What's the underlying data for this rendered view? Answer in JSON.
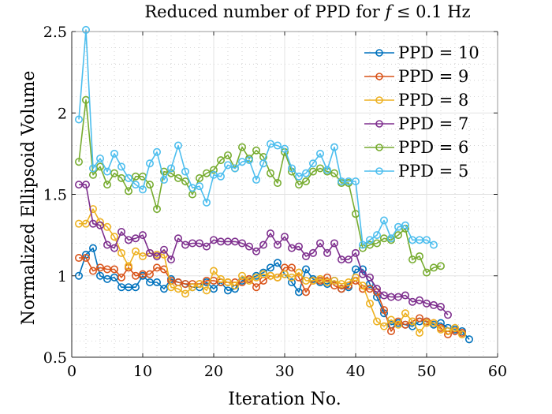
{
  "chart_data": {
    "type": "line",
    "title": "Reduced number of PPD for f ≤ 0.1 Hz",
    "title_parts": {
      "before": "Reduced number of PPD for ",
      "var": "f",
      "after": " ≤ 0.1 Hz"
    },
    "xlabel": "Iteration No.",
    "ylabel": "Normalized Ellipsoid Volume",
    "xlim": [
      0,
      60
    ],
    "ylim": [
      0.5,
      2.5
    ],
    "xticks": [
      0,
      10,
      20,
      30,
      40,
      50,
      60
    ],
    "xtick_labels": [
      "0",
      "10",
      "20",
      "30",
      "40",
      "50",
      "60"
    ],
    "yticks": [
      0.5,
      1,
      1.5,
      2,
      2.5
    ],
    "ytick_labels": [
      "0.5",
      "1",
      "1.5",
      "2",
      "2.5"
    ],
    "grid": true,
    "minor_grid": true,
    "legend_position": "top-right",
    "marker": "circle",
    "series": [
      {
        "name": "PPD = 10",
        "color": "#0072BD",
        "x": [
          1,
          2,
          3,
          4,
          5,
          6,
          7,
          8,
          9,
          10,
          11,
          12,
          13,
          14,
          15,
          16,
          17,
          18,
          19,
          20,
          21,
          22,
          23,
          24,
          25,
          26,
          27,
          28,
          29,
          30,
          31,
          32,
          33,
          34,
          35,
          36,
          37,
          38,
          39,
          40,
          41,
          42,
          43,
          44,
          45,
          46,
          47,
          48,
          49,
          50,
          51,
          52,
          53,
          54,
          55,
          56
        ],
        "values": [
          1.0,
          1.13,
          1.17,
          1.0,
          0.98,
          0.99,
          0.93,
          0.93,
          0.93,
          1.0,
          0.96,
          0.96,
          0.92,
          0.98,
          0.96,
          0.95,
          0.93,
          0.93,
          0.96,
          0.92,
          0.96,
          0.91,
          0.92,
          0.97,
          0.98,
          1.0,
          1.02,
          1.05,
          1.08,
          1.01,
          0.96,
          0.9,
          1.04,
          0.98,
          0.96,
          0.95,
          0.97,
          0.92,
          0.93,
          1.04,
          1.04,
          0.95,
          0.87,
          0.77,
          0.7,
          0.71,
          0.7,
          0.69,
          0.72,
          0.72,
          0.7,
          0.71,
          0.68,
          0.67,
          0.66,
          0.61
        ]
      },
      {
        "name": "PPD = 9",
        "color": "#D95319",
        "x": [
          1,
          2,
          3,
          4,
          5,
          6,
          7,
          8,
          9,
          10,
          11,
          12,
          13,
          14,
          15,
          16,
          17,
          18,
          19,
          20,
          21,
          22,
          23,
          24,
          25,
          26,
          27,
          28,
          29,
          30,
          31,
          32,
          33,
          34,
          35,
          36,
          37,
          38,
          39,
          40,
          41,
          42,
          43,
          44,
          45,
          46,
          47,
          48,
          49,
          50,
          51,
          52,
          53,
          54,
          55
        ],
        "values": [
          1.11,
          1.11,
          1.03,
          1.05,
          1.04,
          1.04,
          0.99,
          1.05,
          1.0,
          1.01,
          1.01,
          1.05,
          1.04,
          0.97,
          0.96,
          0.95,
          0.95,
          0.95,
          0.97,
          0.97,
          0.96,
          0.96,
          0.96,
          0.96,
          0.98,
          0.93,
          0.97,
          1.0,
          0.99,
          1.05,
          1.05,
          0.99,
          0.9,
          0.97,
          0.97,
          0.99,
          0.94,
          0.92,
          0.94,
          0.97,
          0.92,
          0.92,
          0.9,
          0.79,
          0.66,
          0.72,
          0.7,
          0.72,
          0.74,
          0.72,
          0.71,
          0.68,
          0.64,
          0.66,
          0.65
        ]
      },
      {
        "name": "PPD = 8",
        "color": "#EDB120",
        "x": [
          1,
          2,
          3,
          4,
          5,
          6,
          7,
          8,
          9,
          10,
          11,
          12,
          13,
          14,
          15,
          16,
          17,
          18,
          19,
          20,
          21,
          22,
          23,
          24,
          25,
          26,
          27,
          28,
          29,
          30,
          31,
          32,
          33,
          34,
          35,
          36,
          37,
          38,
          39,
          40,
          41,
          42,
          43,
          44,
          45,
          46,
          47,
          48,
          49,
          50,
          51,
          52,
          53,
          54,
          55
        ],
        "values": [
          1.32,
          1.32,
          1.41,
          1.33,
          1.3,
          1.24,
          1.14,
          1.06,
          1.15,
          1.12,
          1.14,
          1.13,
          1.13,
          0.93,
          0.92,
          0.89,
          0.93,
          0.95,
          0.91,
          1.03,
          0.98,
          0.96,
          0.94,
          1.0,
          0.97,
          0.99,
          1.01,
          1.0,
          0.99,
          1.01,
          0.99,
          1.02,
          0.97,
          0.97,
          0.98,
          0.96,
          0.97,
          0.95,
          0.96,
          0.99,
          0.94,
          0.83,
          0.72,
          0.69,
          0.73,
          0.7,
          0.77,
          0.72,
          0.65,
          0.71,
          0.71,
          0.67,
          0.66,
          0.68,
          0.64
        ]
      },
      {
        "name": "PPD = 7",
        "color": "#7E2F8E",
        "x": [
          1,
          2,
          3,
          4,
          5,
          6,
          7,
          8,
          9,
          10,
          11,
          12,
          13,
          14,
          15,
          16,
          17,
          18,
          19,
          20,
          21,
          22,
          23,
          24,
          25,
          26,
          27,
          28,
          29,
          30,
          31,
          32,
          33,
          34,
          35,
          36,
          37,
          38,
          39,
          40,
          41,
          42,
          43,
          44,
          45,
          46,
          47,
          48,
          49,
          50,
          51,
          52,
          53
        ],
        "values": [
          1.56,
          1.56,
          1.32,
          1.31,
          1.19,
          1.17,
          1.27,
          1.22,
          1.23,
          1.25,
          1.14,
          1.12,
          1.16,
          1.1,
          1.23,
          1.19,
          1.2,
          1.2,
          1.18,
          1.22,
          1.21,
          1.21,
          1.21,
          1.2,
          1.18,
          1.15,
          1.19,
          1.26,
          1.19,
          1.24,
          1.17,
          1.18,
          1.12,
          1.14,
          1.2,
          1.14,
          1.2,
          1.1,
          1.1,
          1.14,
          1.01,
          0.99,
          0.92,
          0.88,
          0.87,
          0.87,
          0.88,
          0.84,
          0.85,
          0.83,
          0.82,
          0.81,
          0.76
        ]
      },
      {
        "name": "PPD = 6",
        "color": "#77AC30",
        "x": [
          1,
          2,
          3,
          4,
          5,
          6,
          7,
          8,
          9,
          10,
          11,
          12,
          13,
          14,
          15,
          16,
          17,
          18,
          19,
          20,
          21,
          22,
          23,
          24,
          25,
          26,
          27,
          28,
          29,
          30,
          31,
          32,
          33,
          34,
          35,
          36,
          37,
          38,
          39,
          40,
          41,
          42,
          43,
          44,
          45,
          46,
          47,
          48,
          49,
          50,
          51,
          52
        ],
        "values": [
          1.7,
          2.08,
          1.62,
          1.67,
          1.56,
          1.63,
          1.6,
          1.52,
          1.61,
          1.61,
          1.56,
          1.41,
          1.64,
          1.63,
          1.6,
          1.58,
          1.5,
          1.6,
          1.63,
          1.65,
          1.71,
          1.74,
          1.66,
          1.79,
          1.72,
          1.77,
          1.73,
          1.63,
          1.57,
          1.76,
          1.64,
          1.56,
          1.58,
          1.64,
          1.66,
          1.64,
          1.63,
          1.57,
          1.57,
          1.38,
          1.17,
          1.19,
          1.2,
          1.23,
          1.22,
          1.25,
          1.29,
          1.1,
          1.12,
          1.02,
          1.05,
          1.06
        ]
      },
      {
        "name": "PPD = 5",
        "color": "#4DBEEE",
        "x": [
          1,
          2,
          3,
          4,
          5,
          6,
          7,
          8,
          9,
          10,
          11,
          12,
          13,
          14,
          15,
          16,
          17,
          18,
          19,
          20,
          21,
          22,
          23,
          24,
          25,
          26,
          27,
          28,
          29,
          30,
          31,
          32,
          33,
          34,
          35,
          36,
          37,
          38,
          39,
          40,
          41,
          42,
          43,
          44,
          45,
          46,
          47,
          48,
          49,
          50,
          51
        ],
        "values": [
          1.96,
          2.51,
          1.66,
          1.72,
          1.64,
          1.75,
          1.67,
          1.6,
          1.56,
          1.53,
          1.69,
          1.76,
          1.59,
          1.66,
          1.8,
          1.64,
          1.54,
          1.55,
          1.45,
          1.62,
          1.61,
          1.68,
          1.66,
          1.7,
          1.71,
          1.59,
          1.69,
          1.81,
          1.8,
          1.78,
          1.66,
          1.61,
          1.63,
          1.69,
          1.75,
          1.65,
          1.79,
          1.58,
          1.58,
          1.58,
          1.19,
          1.22,
          1.25,
          1.34,
          1.23,
          1.3,
          1.31,
          1.22,
          1.22,
          1.22,
          1.19
        ]
      }
    ]
  }
}
